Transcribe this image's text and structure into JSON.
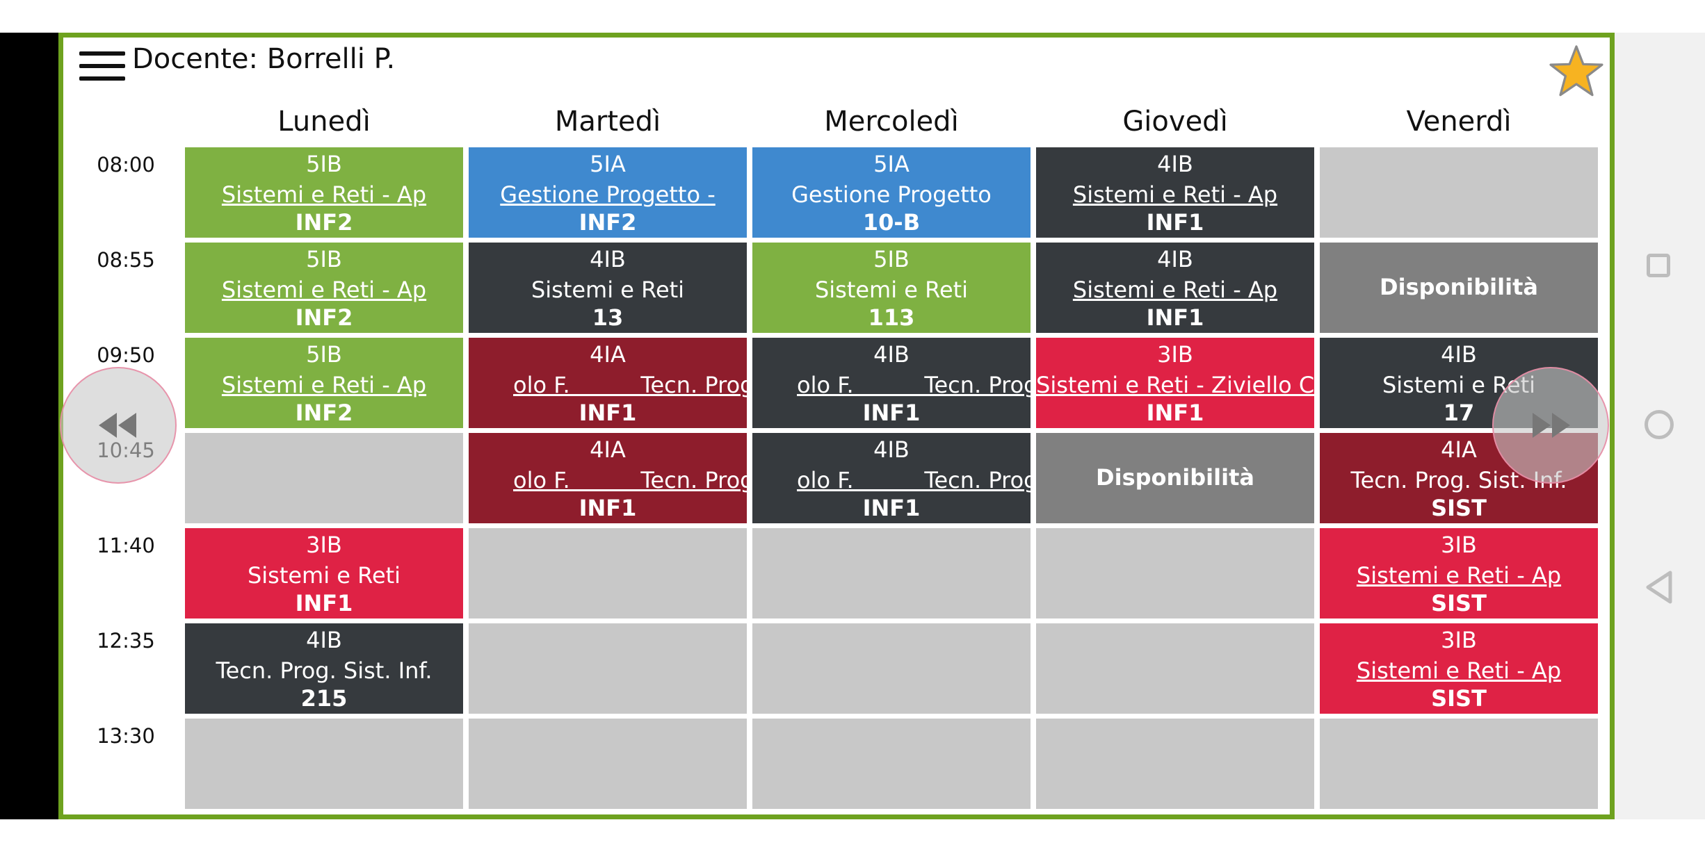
{
  "header": {
    "title": "Docente: Borrelli P."
  },
  "icons": {
    "menu": "hamburger-menu-icon",
    "favorite": "star-icon",
    "prev": "rewind-icon",
    "next": "fast-forward-icon"
  },
  "days": [
    "Lunedì",
    "Martedì",
    "Mercoledì",
    "Giovedì",
    "Venerdì"
  ],
  "times": [
    "08:00",
    "08:55",
    "09:50",
    "10:45",
    "11:40",
    "12:35",
    "13:30"
  ],
  "colors": {
    "green": "#7fb142",
    "blue": "#3f89cf",
    "dark": "#363a3e",
    "maroon": "#8e1d2c",
    "red": "#df2245",
    "gray_slot": "#808080",
    "empty": "#c8c8c8",
    "frame": "#6ea21f"
  },
  "schedule": [
    [
      {
        "class": "5IB",
        "subject": "Sistemi e Reti - Ap",
        "room": "INF2",
        "color": "green",
        "underline": true
      },
      {
        "class": "5IB",
        "subject": "Sistemi e Reti - Ap",
        "room": "INF2",
        "color": "green",
        "underline": true
      },
      {
        "class": "5IB",
        "subject": "Sistemi e Reti - Ap",
        "room": "INF2",
        "color": "green",
        "underline": true
      },
      null,
      {
        "class": "3IB",
        "subject": "Sistemi e Reti",
        "room": "INF1",
        "color": "red"
      },
      {
        "class": "4IB",
        "subject": "Tecn. Prog. Sist. Inf.",
        "room": "215",
        "color": "dark"
      },
      null
    ],
    [
      {
        "class": "5IA",
        "subject": "Gestione Progetto -",
        "room": "INF2",
        "color": "blue",
        "underline": true
      },
      {
        "class": "4IB",
        "subject": "Sistemi e Reti",
        "room": "13",
        "color": "dark"
      },
      {
        "class": "4IA",
        "subject": "olo F.          Tecn. Prog.",
        "room": "INF1",
        "color": "maroon",
        "underline": true,
        "left": true
      },
      {
        "class": "4IA",
        "subject": "olo F.          Tecn. Prog.",
        "room": "INF1",
        "color": "maroon",
        "underline": true,
        "left": true
      },
      null,
      null,
      null
    ],
    [
      {
        "class": "5IA",
        "subject": "Gestione Progetto",
        "room": "10-B",
        "color": "blue"
      },
      {
        "class": "5IB",
        "subject": "Sistemi e Reti",
        "room": "113",
        "color": "green"
      },
      {
        "class": "4IB",
        "subject": "olo F.          Tecn. Prog.",
        "room": "INF1",
        "color": "dark",
        "underline": true,
        "left": true
      },
      {
        "class": "4IB",
        "subject": "olo F.          Tecn. Prog.",
        "room": "INF1",
        "color": "dark",
        "underline": true,
        "left": true
      },
      null,
      null,
      null
    ],
    [
      {
        "class": "4IB",
        "subject": "Sistemi e Reti - Ap",
        "room": "INF1",
        "color": "dark",
        "underline": true
      },
      {
        "class": "4IB",
        "subject": "Sistemi e Reti - Ap",
        "room": "INF1",
        "color": "dark",
        "underline": true
      },
      {
        "class": "3IB",
        "subject": "Sistemi e Reti - Ziviello C.",
        "room": "INF1",
        "color": "red",
        "underline": true
      },
      {
        "single": "Disponibilità",
        "color": "gray_slot"
      },
      null,
      null,
      null
    ],
    [
      null,
      {
        "single": "Disponibilità",
        "color": "gray_slot"
      },
      {
        "class": "4IB",
        "subject": "Sistemi e Reti",
        "room": "17",
        "color": "dark"
      },
      {
        "class": "4IA",
        "subject": "Tecn. Prog. Sist. Inf.",
        "room": "SIST",
        "color": "maroon"
      },
      {
        "class": "3IB",
        "subject": "Sistemi e Reti - Ap",
        "room": "SIST",
        "color": "red",
        "underline": true
      },
      {
        "class": "3IB",
        "subject": "Sistemi e Reti - Ap",
        "room": "SIST",
        "color": "red",
        "underline": true
      },
      null
    ]
  ]
}
